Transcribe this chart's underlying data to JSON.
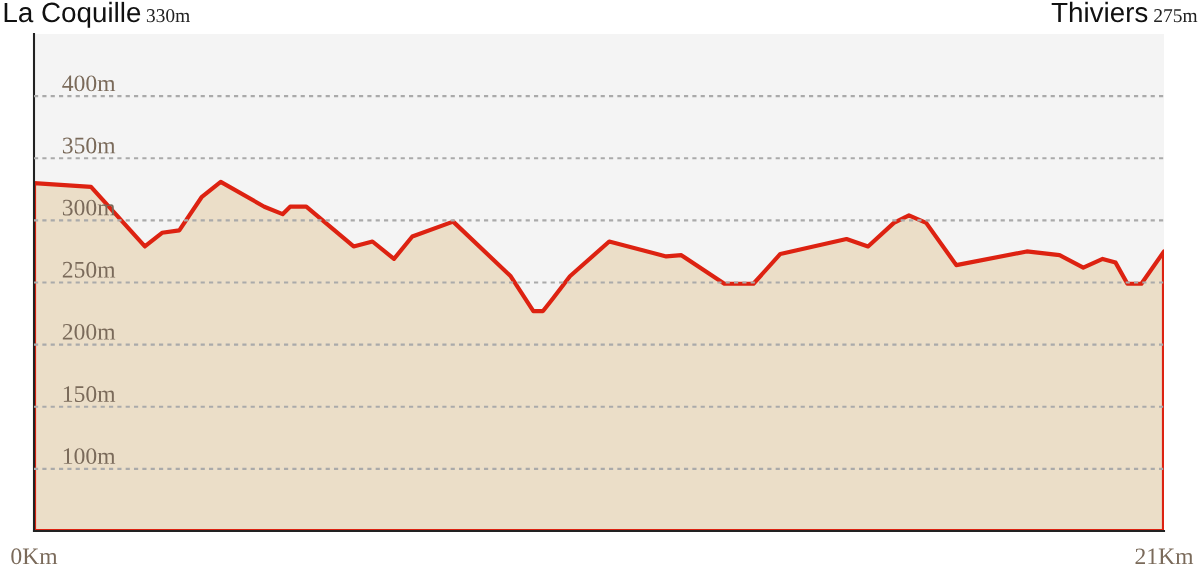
{
  "chart_data": {
    "type": "area",
    "annotations": [
      "La Coquille",
      "330m",
      "Thiviers",
      "275m"
    ],
    "x": [
      0,
      1.06,
      2.06,
      2.38,
      2.7,
      3.12,
      3.47,
      4.28,
      4.62,
      4.76,
      5.06,
      5.94,
      6.29,
      6.69,
      7.03,
      7.79,
      8.86,
      9.28,
      9.46,
      9.64,
      9.96,
      10.69,
      11.31,
      11.75,
      12.03,
      12.83,
      13.37,
      13.87,
      15.1,
      15.5,
      15.98,
      16.26,
      16.58,
      17.14,
      18.45,
      19.06,
      19.5,
      19.86,
      20.1,
      20.32,
      20.58,
      21.0
    ],
    "series": [
      {
        "color": "#dd2211",
        "values": [
          330,
          327,
          279,
          290,
          292,
          319,
          331,
          311,
          305,
          311,
          311,
          279,
          283,
          269,
          287,
          299,
          255,
          227,
          227,
          237,
          255,
          283,
          276,
          271,
          272,
          249,
          249,
          273,
          285,
          279,
          298,
          304,
          298,
          264,
          275,
          272,
          262,
          269,
          266,
          249,
          249,
          275
        ]
      }
    ],
    "xlim": [
      0,
      21
    ],
    "ylim": [
      50,
      450
    ],
    "xticks": [
      {
        "value": 0,
        "label": "0Km"
      },
      {
        "value": 21,
        "label": "21Km"
      }
    ],
    "yticks": [
      {
        "value": 100,
        "label": "100m"
      },
      {
        "value": 150,
        "label": "150m"
      },
      {
        "value": 200,
        "label": "200m"
      },
      {
        "value": 250,
        "label": "250m"
      },
      {
        "value": 300,
        "label": "300m"
      },
      {
        "value": 350,
        "label": "350m"
      },
      {
        "value": 400,
        "label": "400m"
      }
    ],
    "grid": "y",
    "line_style": "solid"
  }
}
